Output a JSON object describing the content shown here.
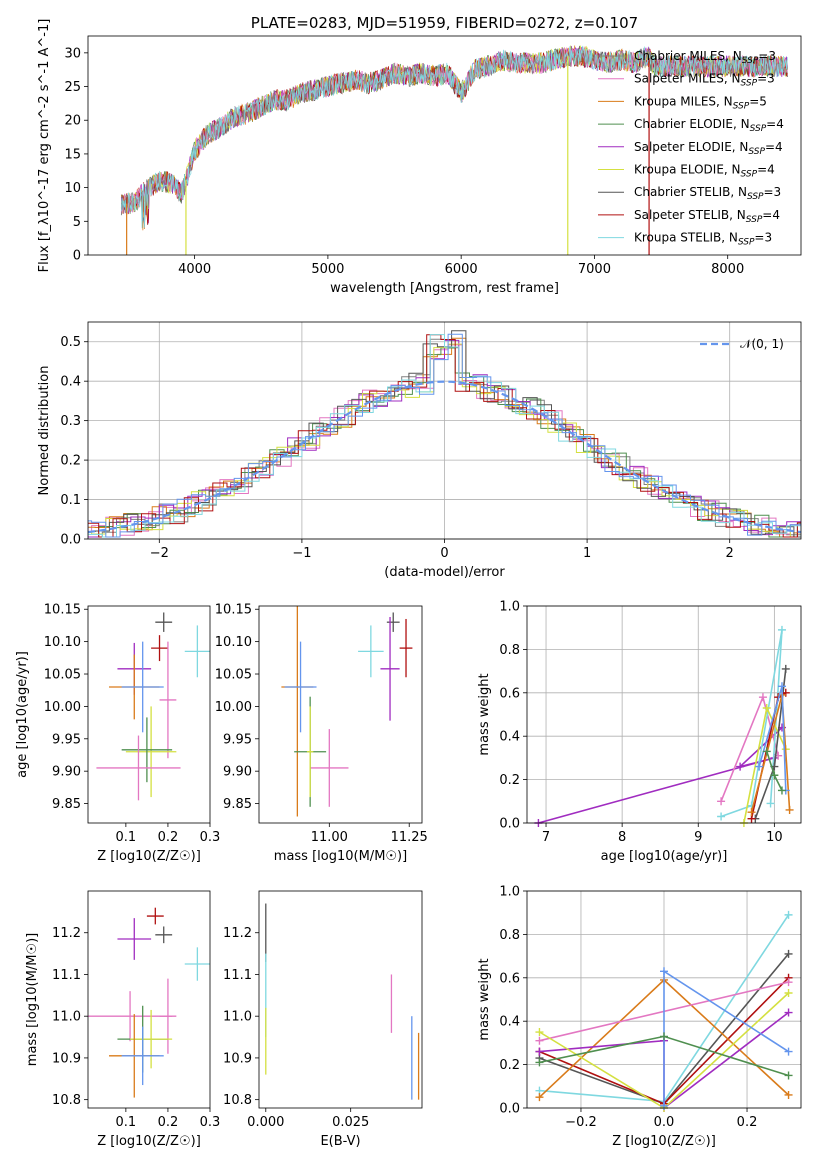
{
  "chart_data": [
    {
      "id": "spectrum",
      "type": "line",
      "title": "PLATE=0283, MJD=51959, FIBERID=0272, z=0.107",
      "xlabel": "wavelength [Angstrom, rest frame]",
      "ylabel": "Flux [f_λ10^-17 erg cm^-2 s^-1 A^-1]",
      "xlim": [
        3200,
        8550
      ],
      "ylim": [
        0,
        32.5
      ],
      "xticks": [
        "4000",
        "5000",
        "6000",
        "7000",
        "8000"
      ],
      "yticks": [
        "0",
        "5",
        "10",
        "15",
        "20",
        "25",
        "30"
      ],
      "legend_position": "upper-right",
      "continuum": {
        "x": [
          3450,
          3550,
          3650,
          3750,
          3850,
          3900,
          3950,
          4000,
          4100,
          4200,
          4300,
          4400,
          4500,
          4600,
          4700,
          4800,
          4900,
          5000,
          5100,
          5200,
          5300,
          5400,
          5500,
          5600,
          5700,
          5800,
          5900,
          6000,
          6100,
          6200,
          6300,
          6400,
          6500,
          6600,
          6700,
          6800,
          6900,
          7000,
          7100,
          7200,
          7300,
          7400,
          7450
        ],
        "y": [
          7.5,
          7.8,
          10,
          11,
          10.5,
          9,
          12,
          15.5,
          18,
          19,
          20.5,
          21,
          22,
          23,
          23,
          24,
          24.5,
          25,
          25.5,
          26,
          25.5,
          26,
          27,
          26.5,
          27,
          26.5,
          27,
          24,
          27.5,
          28,
          29,
          28.5,
          28.5,
          28.5,
          29,
          29.5,
          29.5,
          29,
          28.5,
          29,
          28.5,
          29.5,
          28
        ]
      },
      "series": [
        {
          "name": "Chabrier MILES, N_SSP=3",
          "color": "#808080"
        },
        {
          "name": "Salpeter MILES, N_SSP=3",
          "color": "#e377c2"
        },
        {
          "name": "Kroupa MILES, N_SSP=5",
          "color": "#d97b1a"
        },
        {
          "name": "Chabrier ELODIE, N_SSP=4",
          "color": "#4f8f4f"
        },
        {
          "name": "Salpeter ELODIE, N_SSP=4",
          "color": "#a02cc0"
        },
        {
          "name": "Kroupa ELODIE, N_SSP=4",
          "color": "#d4e040"
        },
        {
          "name": "Chabrier STELIB, N_SSP=3",
          "color": "#555555"
        },
        {
          "name": "Salpeter STELIB, N_SSP=4",
          "color": "#b01010"
        },
        {
          "name": "Kroupa STELIB, N_SSP=3",
          "color": "#7fd8e0"
        }
      ]
    },
    {
      "id": "residuals",
      "type": "line",
      "xlabel": "(data-model)/error",
      "ylabel": "Normed distribution",
      "xlim": [
        -2.5,
        2.5
      ],
      "ylim": [
        0,
        0.55
      ],
      "xticks": [
        "−2",
        "−1",
        "0",
        "1",
        "2"
      ],
      "yticks": [
        "0.0",
        "0.1",
        "0.2",
        "0.3",
        "0.4",
        "0.5"
      ],
      "legend": "𝒩(0, 1)",
      "legend_position": "upper-right",
      "grid": true,
      "colors": [
        "#808080",
        "#e377c2",
        "#d97b1a",
        "#4f8f4f",
        "#a02cc0",
        "#d4e040",
        "#555555",
        "#b01010",
        "#7fd8e0",
        "#6495ed"
      ]
    },
    {
      "id": "age-vs-Z",
      "type": "scatter",
      "xlabel": "Z [log10(Z/Z☉)]",
      "ylabel": "age  [log10(age/yr)]",
      "xlim": [
        0.01,
        0.3
      ],
      "ylim": [
        9.82,
        10.155
      ],
      "xticks": [
        "0.1",
        "0.2",
        "0.3"
      ],
      "yticks": [
        "9.85",
        "9.90",
        "9.95",
        "10.00",
        "10.05",
        "10.10",
        "10.15"
      ],
      "points": [
        {
          "x": 0.19,
          "y": 10.13,
          "xerr": 0.02,
          "yerr": 0.015,
          "color": "#555555"
        },
        {
          "x": 0.18,
          "y": 10.09,
          "xerr": 0.02,
          "yerr": 0.02,
          "color": "#b01010"
        },
        {
          "x": 0.27,
          "y": 10.085,
          "xerr": 0.03,
          "yerr": 0.04,
          "color": "#7fd8e0"
        },
        {
          "x": 0.12,
          "y": 10.058,
          "xerr": 0.04,
          "yerr": 0.04,
          "color": "#a02cc0"
        },
        {
          "x": 0.12,
          "y": 10.03,
          "xerr": 0.06,
          "yerr": 0.05,
          "color": "#d97b1a"
        },
        {
          "x": 0.14,
          "y": 10.03,
          "xerr": 0.05,
          "yerr": 0.07,
          "color": "#6495ed"
        },
        {
          "x": 0.2,
          "y": 10.01,
          "xerr": 0.02,
          "yerr": 0.09,
          "color": "#e377c2"
        },
        {
          "x": 0.16,
          "y": 9.93,
          "xerr": 0.06,
          "yerr": 0.07,
          "color": "#d4e040"
        },
        {
          "x": 0.15,
          "y": 9.933,
          "xerr": 0.06,
          "yerr": 0.05,
          "color": "#4f8f4f"
        },
        {
          "x": 0.13,
          "y": 9.905,
          "xerr": 0.1,
          "yerr": 0.05,
          "color": "#e377c2"
        }
      ]
    },
    {
      "id": "age-vs-mass",
      "type": "scatter",
      "xlabel": "mass [log10(M/M☉)]",
      "ylabel": "",
      "xlim": [
        10.78,
        11.29
      ],
      "ylim": [
        9.82,
        10.155
      ],
      "xticks": [
        "11.00",
        "11.25"
      ],
      "yticks": [
        "9.85",
        "9.90",
        "9.95",
        "10.00",
        "10.05",
        "10.10",
        "10.15"
      ],
      "points": [
        {
          "x": 11.2,
          "y": 10.13,
          "xerr": 0.02,
          "yerr": 0.015,
          "color": "#555555"
        },
        {
          "x": 11.24,
          "y": 10.09,
          "xerr": 0.02,
          "yerr": 0.045,
          "color": "#b01010"
        },
        {
          "x": 11.13,
          "y": 10.085,
          "xerr": 0.04,
          "yerr": 0.04,
          "color": "#7fd8e0"
        },
        {
          "x": 11.19,
          "y": 10.058,
          "xerr": 0.03,
          "yerr": 0.08,
          "color": "#a02cc0"
        },
        {
          "x": 10.9,
          "y": 10.03,
          "xerr": 0.05,
          "yerr": 0.2,
          "color": "#d97b1a"
        },
        {
          "x": 10.91,
          "y": 10.03,
          "xerr": 0.05,
          "yerr": 0.07,
          "color": "#6495ed"
        },
        {
          "x": 11.0,
          "y": 9.905,
          "xerr": 0.06,
          "yerr": 0.06,
          "color": "#e377c2"
        },
        {
          "x": 10.94,
          "y": 9.93,
          "xerr": 0.05,
          "yerr": 0.085,
          "color": "#4f8f4f"
        },
        {
          "x": 10.94,
          "y": 9.93,
          "xerr": 0.01,
          "yerr": 0.07,
          "color": "#d4e040"
        }
      ]
    },
    {
      "id": "mass-vs-Z",
      "type": "scatter",
      "xlabel": "Z [log10(Z/Z☉)]",
      "ylabel": "mass [log10(M/M☉)]",
      "xlim": [
        0.01,
        0.3
      ],
      "ylim": [
        10.78,
        11.3
      ],
      "xticks": [
        "0.1",
        "0.2",
        "0.3"
      ],
      "yticks": [
        "10.8",
        "10.9",
        "11.0",
        "11.1",
        "11.2"
      ],
      "points": [
        {
          "x": 0.17,
          "y": 11.24,
          "xerr": 0.02,
          "yerr": 0.02,
          "color": "#b01010"
        },
        {
          "x": 0.19,
          "y": 11.195,
          "xerr": 0.02,
          "yerr": 0.02,
          "color": "#555555"
        },
        {
          "x": 0.12,
          "y": 11.185,
          "xerr": 0.04,
          "yerr": 0.05,
          "color": "#a02cc0"
        },
        {
          "x": 0.27,
          "y": 11.125,
          "xerr": 0.03,
          "yerr": 0.04,
          "color": "#7fd8e0"
        },
        {
          "x": 0.2,
          "y": 11.0,
          "xerr": 0.02,
          "yerr": 0.09,
          "color": "#e377c2"
        },
        {
          "x": 0.11,
          "y": 11.0,
          "xerr": 0.1,
          "yerr": 0.06,
          "color": "#e377c2"
        },
        {
          "x": 0.14,
          "y": 10.945,
          "xerr": 0.06,
          "yerr": 0.08,
          "color": "#4f8f4f"
        },
        {
          "x": 0.16,
          "y": 10.945,
          "xerr": 0.05,
          "yerr": 0.07,
          "color": "#d4e040"
        },
        {
          "x": 0.12,
          "y": 10.905,
          "xerr": 0.06,
          "yerr": 0.1,
          "color": "#d97b1a"
        },
        {
          "x": 0.14,
          "y": 10.905,
          "xerr": 0.05,
          "yerr": 0.07,
          "color": "#6495ed"
        }
      ]
    },
    {
      "id": "mass-vs-ebv",
      "type": "scatter",
      "xlabel": "E(B-V)",
      "ylabel": "",
      "xlim": [
        -0.002,
        0.046
      ],
      "ylim": [
        10.78,
        11.3
      ],
      "xticks": [
        "0.000",
        "0.025"
      ],
      "yticks": [
        "10.8",
        "10.9",
        "11.0",
        "11.1",
        "11.2"
      ],
      "points": [
        {
          "x": 0.0,
          "y": 11.2,
          "yerr": 0.07,
          "color": "#555555"
        },
        {
          "x": 0.0,
          "y": 11.05,
          "yerr": 0.1,
          "color": "#7fd8e0"
        },
        {
          "x": 0.0,
          "y": 10.94,
          "yerr": 0.08,
          "color": "#d4e040"
        },
        {
          "x": 0.037,
          "y": 11.03,
          "yerr": 0.07,
          "color": "#e377c2"
        },
        {
          "x": 0.043,
          "y": 10.9,
          "yerr": 0.1,
          "color": "#6495ed"
        },
        {
          "x": 0.045,
          "y": 10.88,
          "yerr": 0.08,
          "color": "#d97b1a"
        }
      ]
    },
    {
      "id": "weight-vs-age",
      "type": "line",
      "xlabel": "age  [log10(age/yr)]",
      "ylabel": "mass weight",
      "xlim": [
        6.75,
        10.35
      ],
      "ylim": [
        0,
        1
      ],
      "xticks": [
        "7",
        "8",
        "9",
        "10"
      ],
      "yticks": [
        "0.0",
        "0.2",
        "0.4",
        "0.6",
        "0.8",
        "1.0"
      ],
      "grid": true,
      "series": [
        {
          "color": "#a02cc0",
          "x": [
            6.9,
            10.0,
            9.55,
            10.1
          ],
          "y": [
            0.0,
            0.3,
            0.26,
            0.44
          ]
        },
        {
          "color": "#e377c2",
          "x": [
            9.3,
            9.85,
            10.05
          ],
          "y": [
            0.1,
            0.58,
            0.31
          ]
        },
        {
          "color": "#7fd8e0",
          "x": [
            9.3,
            9.7,
            10.1,
            9.95
          ],
          "y": [
            0.03,
            0.08,
            0.89,
            0.09
          ]
        },
        {
          "color": "#d4e040",
          "x": [
            9.6,
            9.9,
            10.15
          ],
          "y": [
            0.0,
            0.53,
            0.34
          ]
        },
        {
          "color": "#555555",
          "x": [
            9.75,
            10.0,
            10.15
          ],
          "y": [
            0.02,
            0.26,
            0.71
          ]
        },
        {
          "color": "#b01010",
          "x": [
            9.7,
            10.05,
            10.15
          ],
          "y": [
            0.02,
            0.58,
            0.6
          ]
        },
        {
          "color": "#d97b1a",
          "x": [
            9.7,
            10.1,
            10.2
          ],
          "y": [
            0.05,
            0.59,
            0.06
          ]
        },
        {
          "color": "#6495ed",
          "x": [
            9.8,
            10.1,
            10.15
          ],
          "y": [
            0.26,
            0.63,
            0.15
          ]
        },
        {
          "color": "#4f8f4f",
          "x": [
            9.9,
            10.0,
            10.1
          ],
          "y": [
            0.33,
            0.22,
            0.15
          ]
        }
      ]
    },
    {
      "id": "weight-vs-Z",
      "type": "line",
      "xlabel": "Z [log10(Z/Z☉)]",
      "ylabel": "mass weight",
      "xlim": [
        -0.33,
        0.33
      ],
      "ylim": [
        0,
        1
      ],
      "xticks": [
        "−0.2",
        "0.0",
        "0.2"
      ],
      "yticks": [
        "0.0",
        "0.2",
        "0.4",
        "0.6",
        "0.8",
        "1.0"
      ],
      "grid": true,
      "series": [
        {
          "color": "#7fd8e0",
          "x": [
            -0.3,
            0.0,
            0.3
          ],
          "y": [
            0.08,
            0.03,
            0.89
          ]
        },
        {
          "color": "#555555",
          "x": [
            -0.3,
            0.0,
            0.3
          ],
          "y": [
            0.23,
            0.02,
            0.71
          ]
        },
        {
          "color": "#b01010",
          "x": [
            -0.3,
            0.0,
            0.3
          ],
          "y": [
            0.26,
            0.02,
            0.6
          ]
        },
        {
          "color": "#d97b1a",
          "x": [
            -0.3,
            0.0,
            0.3
          ],
          "y": [
            0.05,
            0.59,
            0.06
          ]
        },
        {
          "color": "#e377c2",
          "x": [
            -0.3,
            0.3
          ],
          "y": [
            0.31,
            0.58
          ]
        },
        {
          "color": "#a02cc0",
          "x": [
            -0.3,
            0.0,
            0.0,
            0.3
          ],
          "y": [
            0.26,
            0.31,
            0.0,
            0.44
          ]
        },
        {
          "color": "#d4e040",
          "x": [
            -0.3,
            0.0,
            0.3
          ],
          "y": [
            0.35,
            0.0,
            0.53
          ]
        },
        {
          "color": "#6495ed",
          "x": [
            0.0,
            0.0,
            0.3
          ],
          "y": [
            0.01,
            0.63,
            0.26
          ]
        },
        {
          "color": "#4f8f4f",
          "x": [
            -0.3,
            0.0,
            0.3
          ],
          "y": [
            0.21,
            0.33,
            0.15
          ]
        }
      ]
    }
  ]
}
